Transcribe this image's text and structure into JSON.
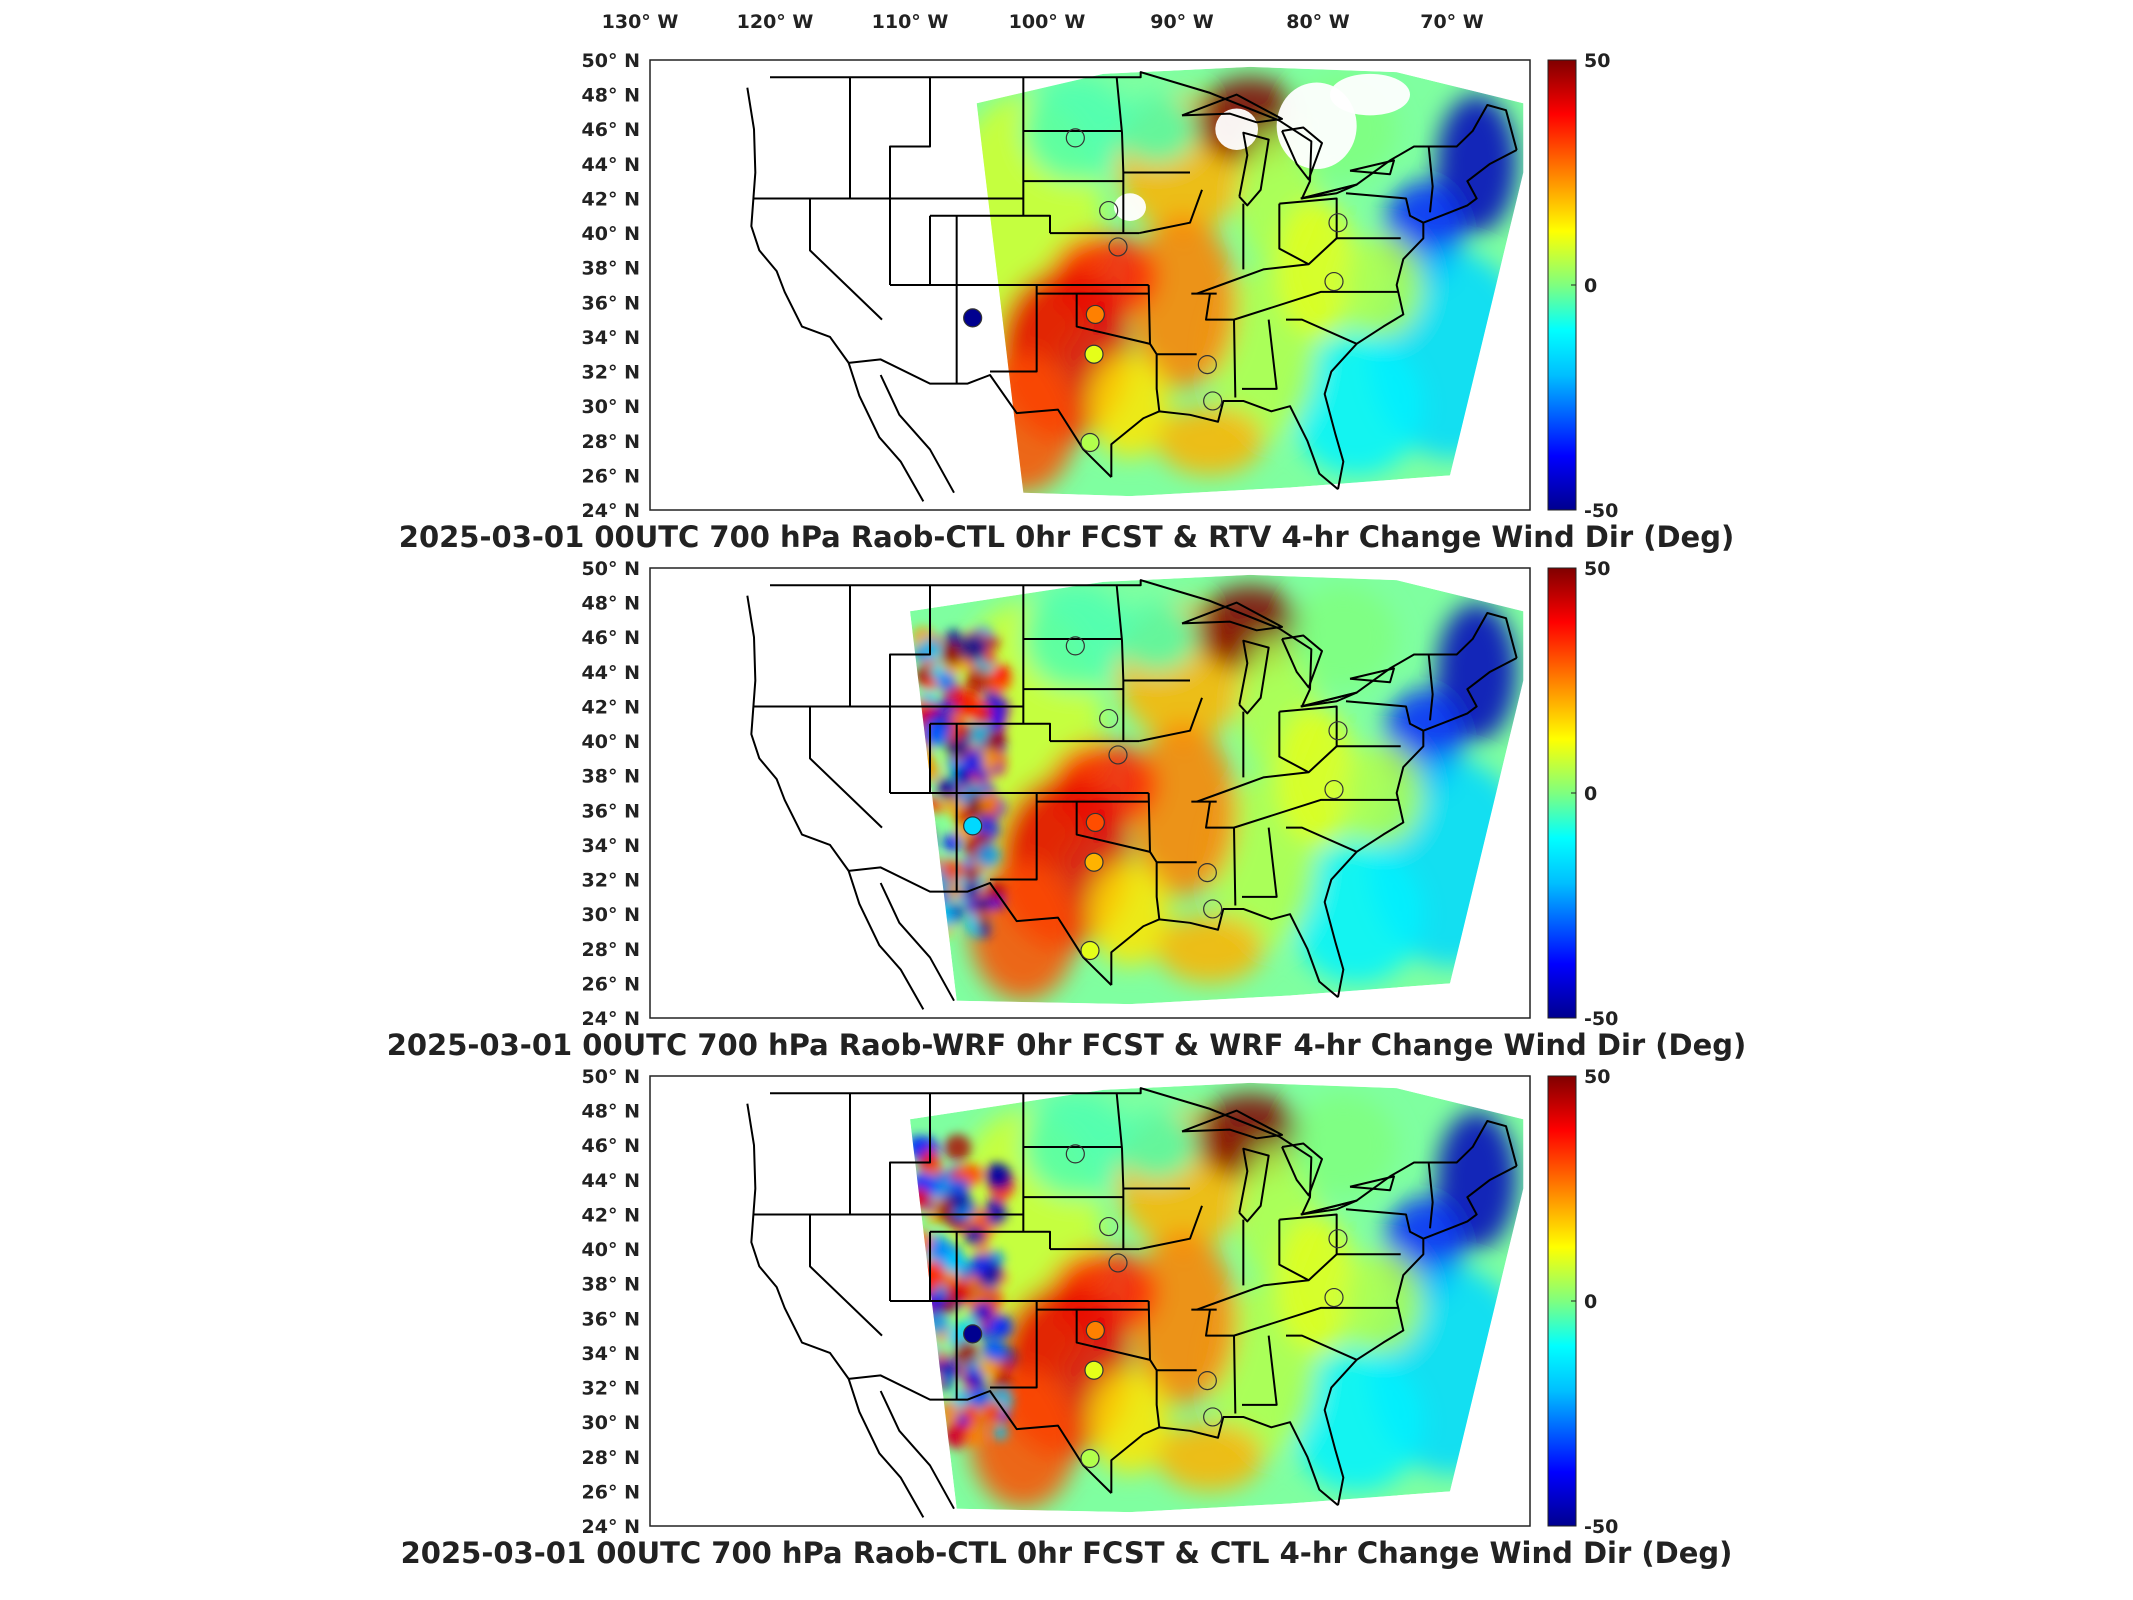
{
  "figure": {
    "longitude_labels": [
      "130",
      "120",
      "110",
      "100",
      "90",
      "80",
      "70"
    ],
    "longitude_suffix": "W",
    "latitude_labels": [
      "50",
      "48",
      "46",
      "44",
      "42",
      "40",
      "38",
      "36",
      "34",
      "32",
      "30",
      "28",
      "26",
      "24"
    ],
    "latitude_suffix": "N",
    "degree_symbol": "°"
  },
  "colorbar": {
    "ticks": [
      "50",
      "0",
      "-50"
    ],
    "min": -50,
    "max": 50,
    "colormap": "jet",
    "stops": [
      "#00008f",
      "#0000ff",
      "#00bfff",
      "#00ffff",
      "#7fff7f",
      "#ffff00",
      "#ff8000",
      "#ff0000",
      "#800000"
    ]
  },
  "panels": [
    {
      "title": "2025-03-01 00UTC 700 hPa Raob-CTL 0hr FCST & RTV 4-hr Change Wind Dir (Deg)",
      "field": "RTV 4-hr Change",
      "stations": [
        {
          "name": "s1",
          "lon": -100.1,
          "lat": 45.5,
          "value": 0
        },
        {
          "name": "s2",
          "lon": -97.6,
          "lat": 41.3,
          "value": 0
        },
        {
          "name": "s3",
          "lon": -96.9,
          "lat": 39.2,
          "value": 0
        },
        {
          "name": "s4",
          "lon": -98.6,
          "lat": 35.3,
          "value": 25
        },
        {
          "name": "s5",
          "lon": -98.7,
          "lat": 33.0,
          "value": 10
        },
        {
          "name": "s6",
          "lon": -90.2,
          "lat": 32.4,
          "value": 0
        },
        {
          "name": "s7",
          "lon": -89.8,
          "lat": 30.3,
          "value": 0
        },
        {
          "name": "s8",
          "lon": -99.0,
          "lat": 27.9,
          "value": 5
        },
        {
          "name": "s9",
          "lon": -80.4,
          "lat": 40.6,
          "value": 0
        },
        {
          "name": "s10",
          "lon": -80.7,
          "lat": 37.2,
          "value": 0
        },
        {
          "name": "s11",
          "lon": -107.8,
          "lat": 35.1,
          "value": -50
        }
      ]
    },
    {
      "title": "2025-03-01 00UTC 700 hPa Raob-WRF 0hr FCST & WRF 4-hr Change Wind Dir (Deg)",
      "field": "WRF 4-hr Change",
      "stations": [
        {
          "name": "s1",
          "lon": -100.1,
          "lat": 45.5,
          "value": 0
        },
        {
          "name": "s2",
          "lon": -97.6,
          "lat": 41.3,
          "value": 0
        },
        {
          "name": "s3",
          "lon": -96.9,
          "lat": 39.2,
          "value": 0
        },
        {
          "name": "s4",
          "lon": -98.6,
          "lat": 35.3,
          "value": 30
        },
        {
          "name": "s5",
          "lon": -98.7,
          "lat": 33.0,
          "value": 20
        },
        {
          "name": "s6",
          "lon": -90.2,
          "lat": 32.4,
          "value": 0
        },
        {
          "name": "s7",
          "lon": -89.8,
          "lat": 30.3,
          "value": 0
        },
        {
          "name": "s8",
          "lon": -99.0,
          "lat": 27.9,
          "value": 10
        },
        {
          "name": "s9",
          "lon": -80.4,
          "lat": 40.6,
          "value": 0
        },
        {
          "name": "s10",
          "lon": -80.7,
          "lat": 37.2,
          "value": 0
        },
        {
          "name": "s11",
          "lon": -107.8,
          "lat": 35.1,
          "value": -20
        }
      ]
    },
    {
      "title": "2025-03-01 00UTC 700 hPa Raob-CTL 0hr FCST & CTL 4-hr Change Wind Dir (Deg)",
      "field": "CTL 4-hr Change",
      "stations": [
        {
          "name": "s1",
          "lon": -100.1,
          "lat": 45.5,
          "value": 0
        },
        {
          "name": "s2",
          "lon": -97.6,
          "lat": 41.3,
          "value": 0
        },
        {
          "name": "s3",
          "lon": -96.9,
          "lat": 39.2,
          "value": 0
        },
        {
          "name": "s4",
          "lon": -98.6,
          "lat": 35.3,
          "value": 25
        },
        {
          "name": "s5",
          "lon": -98.7,
          "lat": 33.0,
          "value": 10
        },
        {
          "name": "s6",
          "lon": -90.2,
          "lat": 32.4,
          "value": 0
        },
        {
          "name": "s7",
          "lon": -89.8,
          "lat": 30.3,
          "value": 0
        },
        {
          "name": "s8",
          "lon": -99.0,
          "lat": 27.9,
          "value": 5
        },
        {
          "name": "s9",
          "lon": -80.4,
          "lat": 40.6,
          "value": 0
        },
        {
          "name": "s10",
          "lon": -80.7,
          "lat": 37.2,
          "value": 0
        },
        {
          "name": "s11",
          "lon": -107.8,
          "lat": 35.1,
          "value": -50
        }
      ]
    }
  ]
}
